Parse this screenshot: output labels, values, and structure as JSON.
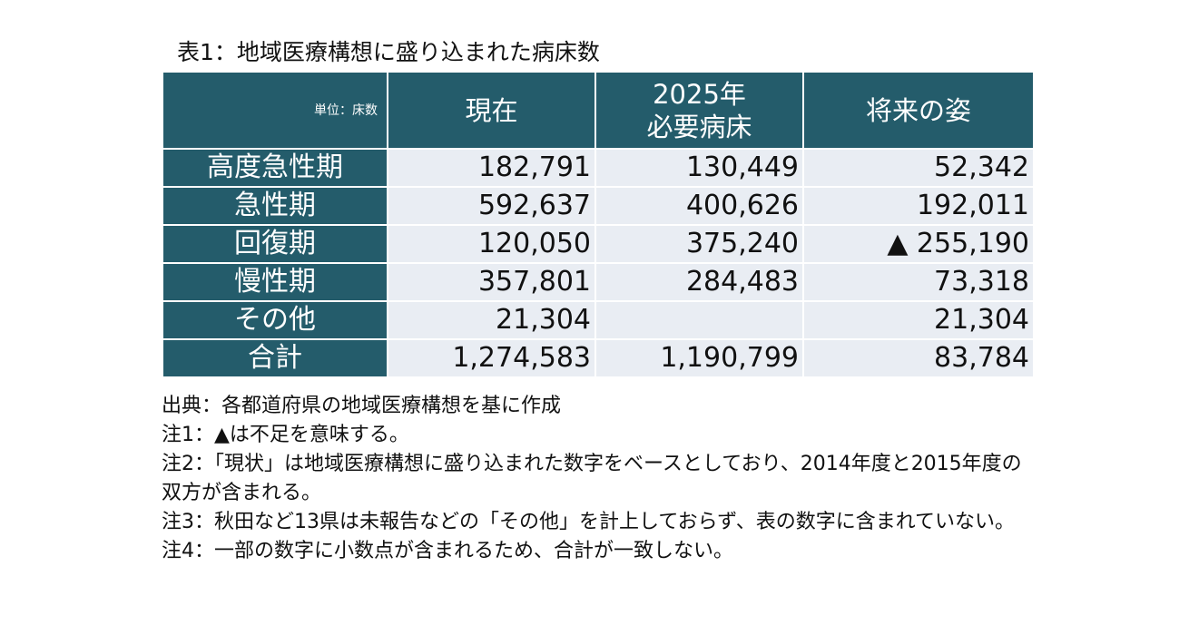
{
  "title": "表1：地域医療構想に盛り込まれた病床数",
  "table": {
    "unit": "単位：床数",
    "columns": [
      "現在",
      [
        "2025年",
        "必要病床"
      ],
      "将来の姿"
    ],
    "rows": [
      [
        "高度急性期",
        "182,791",
        "130,449",
        "52,342"
      ],
      [
        "急性期",
        "592,637",
        "400,626",
        "192,011"
      ],
      [
        "回復期",
        "120,050",
        "375,240",
        "▲ 255,190"
      ],
      [
        "慢性期",
        "357,801",
        "284,483",
        "73,318"
      ],
      [
        "その他",
        "21,304",
        null,
        "21,304"
      ],
      [
        "合計",
        "1,274,583",
        "1,190,799",
        "83,784"
      ]
    ]
  },
  "notes": [
    "出典：各都道府県の地域医療構想を基に作成",
    "注1：▲は不足を意味する。",
    "注2：「現状」は地域医療構想に盛り込まれた数字をベースとしており、2014年度と2015年度の双方が含まれる。",
    "注3：秋田など13県は未報告などの「その他」を計上しておらず、表の数字に含まれていない。",
    "注4：一部の数字に小数点が含まれるため、合計が一致しない。"
  ]
}
